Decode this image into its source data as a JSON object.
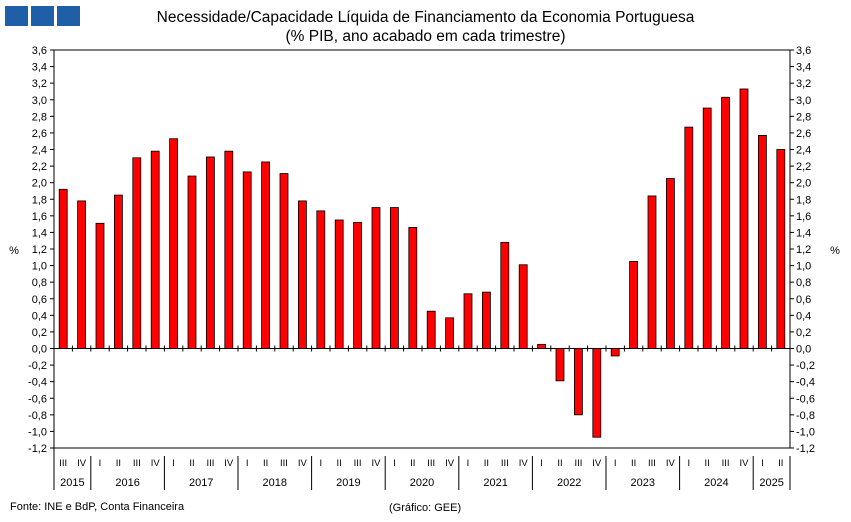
{
  "brand": {
    "colors": [
      "#1f5fa8",
      "#1f5fa8",
      "#1f5fa8"
    ]
  },
  "header": {
    "title_line1": "Necessidade/Capacidade Líquida de Financiamento da Economia Portuguesa",
    "title_line2": "(% PIB, ano acabado em cada trimestre)"
  },
  "footer": {
    "source": "Fonte: INE e BdP, Conta Financeira",
    "credit": "(Gráfico: GEE)"
  },
  "chart_data": {
    "type": "bar",
    "title": "Necessidade/Capacidade Líquida de Financiamento da Economia Portuguesa (% PIB, ano acabado em cada trimestre)",
    "ylabel": "%",
    "ylim": [
      -1.2,
      3.6
    ],
    "ytick_step": 0.2,
    "decimal_separator": ",",
    "bar_color": "#ff0000",
    "bar_edge_color": "#000000",
    "quarters": [
      "III",
      "IV",
      "I",
      "II",
      "III",
      "IV",
      "I",
      "II",
      "III",
      "IV",
      "I",
      "II",
      "III",
      "IV",
      "I",
      "II",
      "III",
      "IV",
      "I",
      "II",
      "III",
      "IV",
      "I",
      "II",
      "III",
      "IV",
      "I",
      "II",
      "III",
      "IV",
      "I",
      "II",
      "III",
      "IV",
      "I",
      "II",
      "III",
      "IV",
      "I",
      "II"
    ],
    "years": [
      {
        "label": "2015",
        "count": 2
      },
      {
        "label": "2016",
        "count": 4
      },
      {
        "label": "2017",
        "count": 4
      },
      {
        "label": "2018",
        "count": 4
      },
      {
        "label": "2019",
        "count": 4
      },
      {
        "label": "2020",
        "count": 4
      },
      {
        "label": "2021",
        "count": 4
      },
      {
        "label": "2022",
        "count": 4
      },
      {
        "label": "2023",
        "count": 4
      },
      {
        "label": "2024",
        "count": 4
      },
      {
        "label": "2025",
        "count": 2
      }
    ],
    "values": [
      1.92,
      1.78,
      1.51,
      1.85,
      2.3,
      2.38,
      2.53,
      2.08,
      2.31,
      2.38,
      2.13,
      2.25,
      2.11,
      1.78,
      1.66,
      1.55,
      1.52,
      1.7,
      1.7,
      1.46,
      0.45,
      0.37,
      0.66,
      0.68,
      1.28,
      1.01,
      0.05,
      -0.39,
      -0.8,
      -1.07,
      -0.09,
      1.05,
      1.84,
      2.05,
      2.67,
      2.9,
      3.03,
      3.13,
      2.57,
      2.4
    ],
    "grid": false
  }
}
